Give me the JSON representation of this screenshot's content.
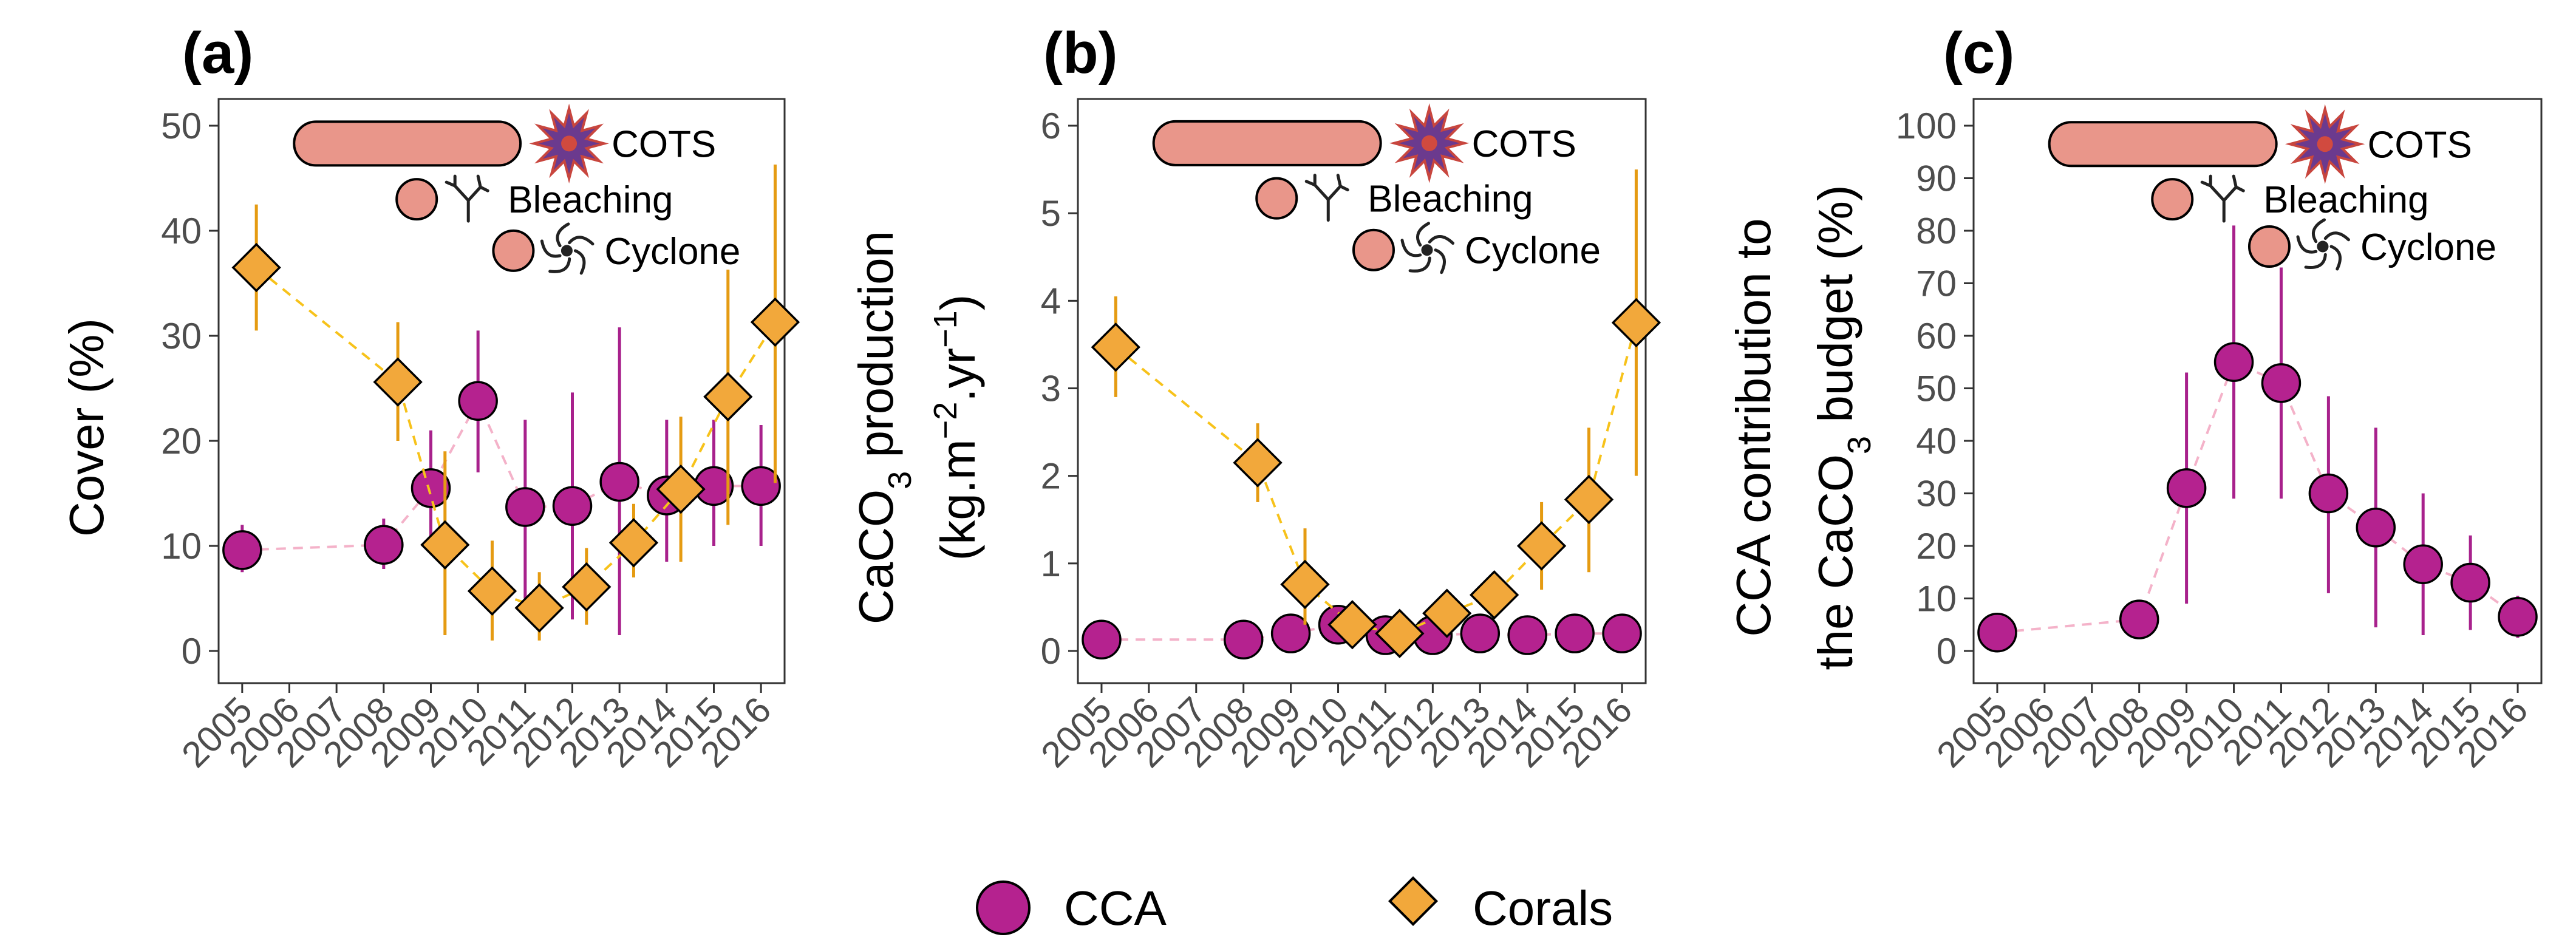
{
  "colors": {
    "cca": "#b5228f",
    "corals": "#f2a83b",
    "cca_line": "#f4b2c9",
    "coral_line": "#f7c21a",
    "cca_err": "#a8218c",
    "coral_err": "#e59b12",
    "event_fill": "#e9968a"
  },
  "events": {
    "cots": "COTS",
    "bleaching": "Bleaching",
    "cyclone": "Cyclone"
  },
  "icons": {
    "cots": "crown-of-thorns-starfish-icon",
    "bleaching": "bleached-coral-icon",
    "cyclone": "cyclone-icon"
  },
  "legend": {
    "cca": "CCA",
    "corals": "Corals"
  },
  "chart_data": [
    {
      "type": "scatter",
      "panel": "(a)",
      "ylabel": "Cover (%)",
      "ylim": [
        0,
        50
      ],
      "yticks": [
        0,
        10,
        20,
        30,
        40,
        50
      ],
      "xticks": [
        "2005",
        "2006",
        "2007",
        "2008",
        "2009",
        "2010",
        "2011",
        "2012",
        "2013",
        "2014",
        "2015",
        "2016"
      ],
      "series": [
        {
          "name": "CCA",
          "points": [
            {
              "x": 2005,
              "y": 9.6,
              "lo": 7.5,
              "hi": 12
            },
            {
              "x": 2008,
              "y": 10.1,
              "lo": 7.8,
              "hi": 12.6
            },
            {
              "x": 2009,
              "y": 15.5,
              "lo": 10,
              "hi": 21
            },
            {
              "x": 2010,
              "y": 23.8,
              "lo": 17,
              "hi": 30.5
            },
            {
              "x": 2011,
              "y": 13.7,
              "lo": 5,
              "hi": 22
            },
            {
              "x": 2012,
              "y": 13.8,
              "lo": 3,
              "hi": 24.6
            },
            {
              "x": 2013,
              "y": 16.1,
              "lo": 1.5,
              "hi": 30.8
            },
            {
              "x": 2014,
              "y": 14.8,
              "lo": 8.5,
              "hi": 22
            },
            {
              "x": 2015,
              "y": 15.7,
              "lo": 10,
              "hi": 22
            },
            {
              "x": 2016,
              "y": 15.7,
              "lo": 10,
              "hi": 21.5
            }
          ]
        },
        {
          "name": "Corals",
          "points": [
            {
              "x": 2005,
              "y": 36.5,
              "lo": 30.5,
              "hi": 42.5
            },
            {
              "x": 2008,
              "y": 25.6,
              "lo": 20,
              "hi": 31.3
            },
            {
              "x": 2009,
              "y": 10.1,
              "lo": 1.5,
              "hi": 19
            },
            {
              "x": 2010,
              "y": 5.7,
              "lo": 1,
              "hi": 10.5
            },
            {
              "x": 2011,
              "y": 4.1,
              "lo": 1,
              "hi": 7.5
            },
            {
              "x": 2012,
              "y": 6.1,
              "lo": 2.5,
              "hi": 9.8
            },
            {
              "x": 2013,
              "y": 10.3,
              "lo": 7,
              "hi": 14
            },
            {
              "x": 2014,
              "y": 15.4,
              "lo": 8.5,
              "hi": 22.3
            },
            {
              "x": 2015,
              "y": 24.2,
              "lo": 12,
              "hi": 36.3
            },
            {
              "x": 2016,
              "y": 31.3,
              "lo": 16,
              "hi": 46.3
            }
          ]
        }
      ],
      "events": {
        "cots": {
          "start": 2006.1,
          "end": 2010.9,
          "y": 48.3
        },
        "bleaching": {
          "x": 2008.7,
          "y": 43
        },
        "cyclone": {
          "x": 2010.75,
          "y": 38.1
        }
      }
    },
    {
      "type": "scatter",
      "panel": "(b)",
      "ylabel_parts": [
        "CaCO",
        "3",
        " production",
        "(kg.m",
        "−2",
        ".yr",
        "−1",
        ")"
      ],
      "ylim": [
        0,
        6
      ],
      "yticks": [
        0,
        1,
        2,
        3,
        4,
        5,
        6
      ],
      "xticks": [
        "2005",
        "2006",
        "2007",
        "2008",
        "2009",
        "2010",
        "2011",
        "2012",
        "2013",
        "2014",
        "2015",
        "2016"
      ],
      "series": [
        {
          "name": "CCA",
          "points": [
            {
              "x": 2005,
              "y": 0.13
            },
            {
              "x": 2008,
              "y": 0.13
            },
            {
              "x": 2009,
              "y": 0.2
            },
            {
              "x": 2010,
              "y": 0.3,
              "lo": 0.2,
              "hi": 0.4
            },
            {
              "x": 2011,
              "y": 0.18
            },
            {
              "x": 2012,
              "y": 0.18
            },
            {
              "x": 2013,
              "y": 0.2,
              "lo": 0.05,
              "hi": 0.35
            },
            {
              "x": 2014,
              "y": 0.18
            },
            {
              "x": 2015,
              "y": 0.2
            },
            {
              "x": 2016,
              "y": 0.2
            }
          ]
        },
        {
          "name": "Corals",
          "points": [
            {
              "x": 2005,
              "y": 3.47,
              "lo": 2.9,
              "hi": 4.05
            },
            {
              "x": 2008,
              "y": 2.15,
              "lo": 1.7,
              "hi": 2.6
            },
            {
              "x": 2009,
              "y": 0.76,
              "lo": 0.3,
              "hi": 1.4
            },
            {
              "x": 2010,
              "y": 0.3,
              "lo": 0.1,
              "hi": 0.55
            },
            {
              "x": 2011,
              "y": 0.2,
              "lo": 0.08,
              "hi": 0.33
            },
            {
              "x": 2012,
              "y": 0.43,
              "lo": 0.25,
              "hi": 0.65
            },
            {
              "x": 2013,
              "y": 0.64,
              "lo": 0.5,
              "hi": 0.8
            },
            {
              "x": 2014,
              "y": 1.2,
              "lo": 0.7,
              "hi": 1.7
            },
            {
              "x": 2015,
              "y": 1.73,
              "lo": 0.9,
              "hi": 2.55
            },
            {
              "x": 2016,
              "y": 3.75,
              "lo": 2,
              "hi": 5.5
            }
          ]
        }
      ],
      "events": {
        "cots": {
          "start": 2006.1,
          "end": 2010.9,
          "y": 5.8
        },
        "bleaching": {
          "x": 2008.7,
          "y": 5.17
        },
        "cyclone": {
          "x": 2010.75,
          "y": 4.58
        }
      }
    },
    {
      "type": "scatter",
      "panel": "(c)",
      "ylabel_parts": [
        "CCA contribution to",
        "the CaCO",
        "3",
        " budget (%)"
      ],
      "ylim": [
        0,
        100
      ],
      "yticks": [
        0,
        10,
        20,
        30,
        40,
        50,
        60,
        70,
        80,
        90,
        100
      ],
      "xticks": [
        "2005",
        "2006",
        "2007",
        "2008",
        "2009",
        "2010",
        "2011",
        "2012",
        "2013",
        "2014",
        "2015",
        "2016"
      ],
      "series": [
        {
          "name": "CCA",
          "points": [
            {
              "x": 2005,
              "y": 3.5
            },
            {
              "x": 2008,
              "y": 6,
              "lo": 4.5,
              "hi": 7.5
            },
            {
              "x": 2009,
              "y": 31,
              "lo": 9,
              "hi": 53
            },
            {
              "x": 2010,
              "y": 55,
              "lo": 29,
              "hi": 81
            },
            {
              "x": 2011,
              "y": 51,
              "lo": 29,
              "hi": 73
            },
            {
              "x": 2012,
              "y": 30,
              "lo": 11,
              "hi": 48.5
            },
            {
              "x": 2013,
              "y": 23.5,
              "lo": 4.5,
              "hi": 42.5
            },
            {
              "x": 2014,
              "y": 16.5,
              "lo": 3,
              "hi": 30
            },
            {
              "x": 2015,
              "y": 13,
              "lo": 4,
              "hi": 22
            },
            {
              "x": 2016,
              "y": 6.5,
              "lo": 2.5,
              "hi": 10.5
            }
          ]
        }
      ],
      "events": {
        "cots": {
          "start": 2006.1,
          "end": 2010.9,
          "y": 96.5
        },
        "bleaching": {
          "x": 2008.7,
          "y": 86
        },
        "cyclone": {
          "x": 2010.75,
          "y": 77
        }
      }
    }
  ]
}
